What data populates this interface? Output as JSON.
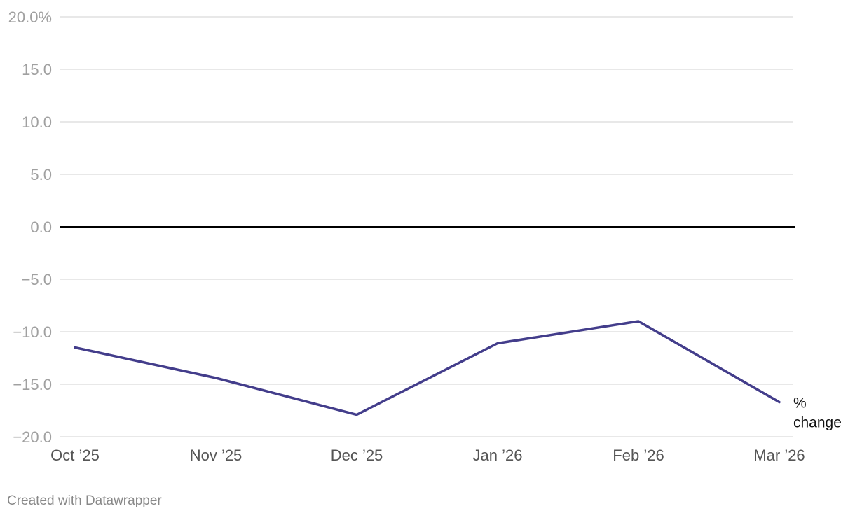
{
  "chart_data": {
    "type": "line",
    "title": "",
    "xlabel": "",
    "ylabel": "",
    "categories": [
      "Oct ’25",
      "Nov ’25",
      "Dec ’25",
      "Jan ’26",
      "Feb ’26",
      "Mar ’26"
    ],
    "y_ticks": [
      20,
      15,
      10,
      5,
      0,
      -5,
      -10,
      -15,
      -20
    ],
    "y_tick_labels": [
      "20.0%",
      "15.0",
      "10.0",
      "5.0",
      "0.0",
      "−5.0",
      "−10.0",
      "−15.0",
      "−20.0"
    ],
    "ylim": [
      -20,
      20
    ],
    "grid": true,
    "series": [
      {
        "name": "% change",
        "label_lines": [
          "%",
          "change"
        ],
        "color": "#433d8b",
        "values": [
          -11.5,
          -14.4,
          -17.9,
          -11.1,
          -9.0,
          -16.7
        ]
      }
    ],
    "zero_line_color": "#000000",
    "grid_color": "#e0e0e0"
  },
  "footer": {
    "credit": "Created with Datawrapper"
  }
}
